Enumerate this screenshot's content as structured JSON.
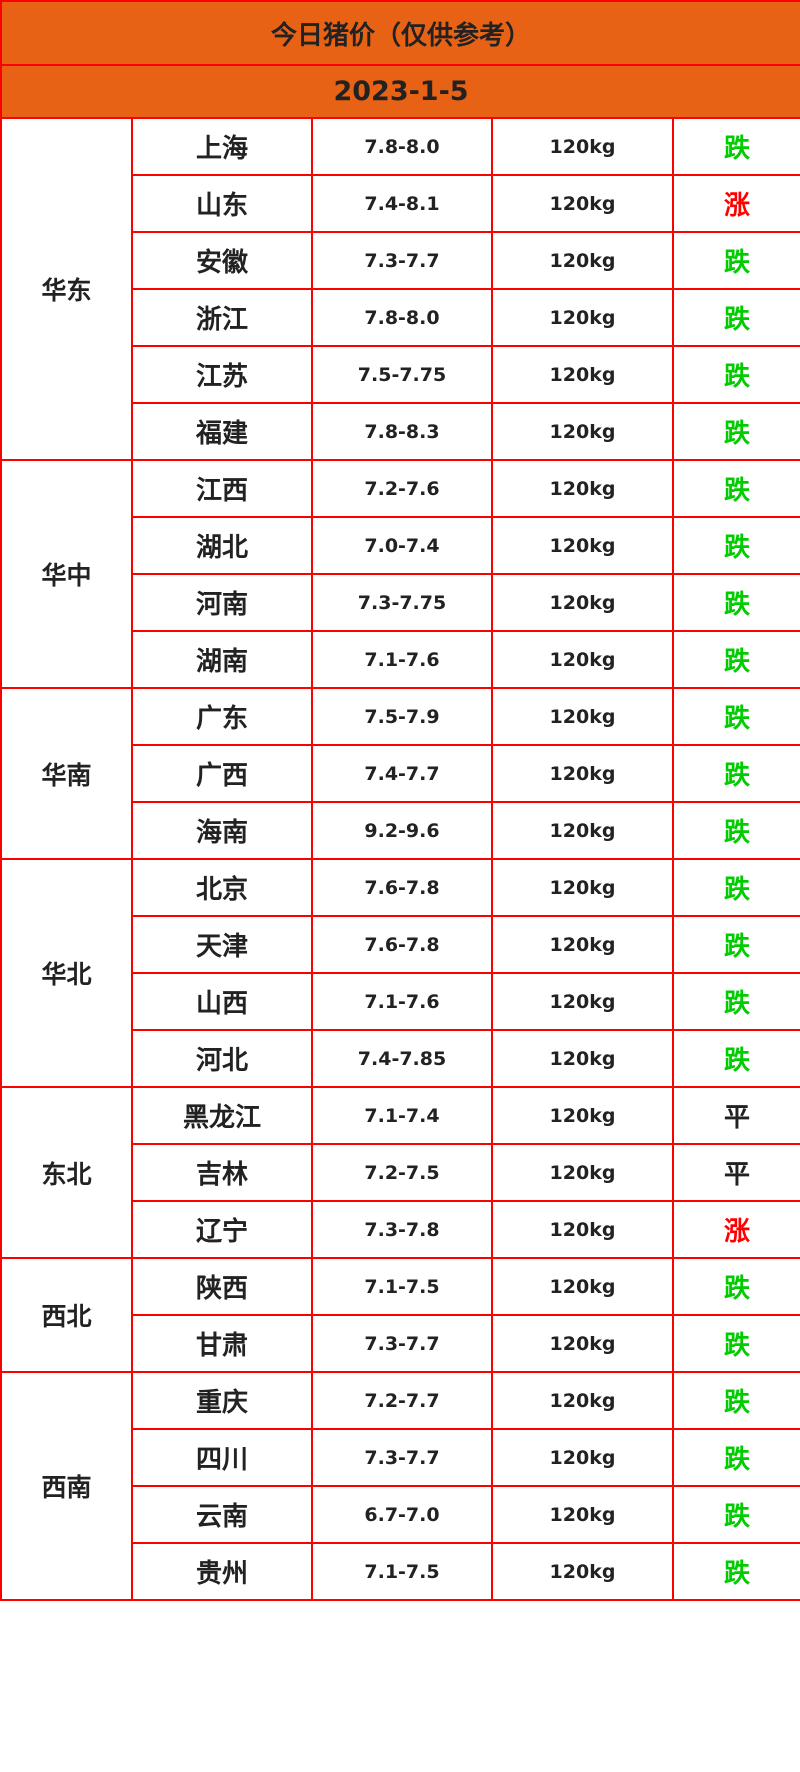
{
  "title": "今日猪价（仅供参考）",
  "date": "2023-1-5",
  "colors": {
    "header_bg": "#e86215",
    "border": "#ff0000",
    "down": "#00cc00",
    "up": "#ff0000",
    "flat": "#222222"
  },
  "regions": [
    {
      "name": "华东",
      "rows": [
        {
          "province": "上海",
          "price": "7.8-8.0",
          "weight": "120kg",
          "trend": "跌"
        },
        {
          "province": "山东",
          "price": "7.4-8.1",
          "weight": "120kg",
          "trend": "涨"
        },
        {
          "province": "安徽",
          "price": "7.3-7.7",
          "weight": "120kg",
          "trend": "跌"
        },
        {
          "province": "浙江",
          "price": "7.8-8.0",
          "weight": "120kg",
          "trend": "跌"
        },
        {
          "province": "江苏",
          "price": "7.5-7.75",
          "weight": "120kg",
          "trend": "跌"
        },
        {
          "province": "福建",
          "price": "7.8-8.3",
          "weight": "120kg",
          "trend": "跌"
        }
      ]
    },
    {
      "name": "华中",
      "rows": [
        {
          "province": "江西",
          "price": "7.2-7.6",
          "weight": "120kg",
          "trend": "跌"
        },
        {
          "province": "湖北",
          "price": "7.0-7.4",
          "weight": "120kg",
          "trend": "跌"
        },
        {
          "province": "河南",
          "price": "7.3-7.75",
          "weight": "120kg",
          "trend": "跌"
        },
        {
          "province": "湖南",
          "price": "7.1-7.6",
          "weight": "120kg",
          "trend": "跌"
        }
      ]
    },
    {
      "name": "华南",
      "rows": [
        {
          "province": "广东",
          "price": "7.5-7.9",
          "weight": "120kg",
          "trend": "跌"
        },
        {
          "province": "广西",
          "price": "7.4-7.7",
          "weight": "120kg",
          "trend": "跌"
        },
        {
          "province": "海南",
          "price": "9.2-9.6",
          "weight": "120kg",
          "trend": "跌"
        }
      ]
    },
    {
      "name": "华北",
      "rows": [
        {
          "province": "北京",
          "price": "7.6-7.8",
          "weight": "120kg",
          "trend": "跌"
        },
        {
          "province": "天津",
          "price": "7.6-7.8",
          "weight": "120kg",
          "trend": "跌"
        },
        {
          "province": "山西",
          "price": "7.1-7.6",
          "weight": "120kg",
          "trend": "跌"
        },
        {
          "province": "河北",
          "price": "7.4-7.85",
          "weight": "120kg",
          "trend": "跌"
        }
      ]
    },
    {
      "name": "东北",
      "rows": [
        {
          "province": "黑龙江",
          "price": "7.1-7.4",
          "weight": "120kg",
          "trend": "平"
        },
        {
          "province": "吉林",
          "price": "7.2-7.5",
          "weight": "120kg",
          "trend": "平"
        },
        {
          "province": "辽宁",
          "price": "7.3-7.8",
          "weight": "120kg",
          "trend": "涨"
        }
      ]
    },
    {
      "name": "西北",
      "rows": [
        {
          "province": "陕西",
          "price": "7.1-7.5",
          "weight": "120kg",
          "trend": "跌"
        },
        {
          "province": "甘肃",
          "price": "7.3-7.7",
          "weight": "120kg",
          "trend": "跌"
        }
      ]
    },
    {
      "name": "西南",
      "rows": [
        {
          "province": "重庆",
          "price": "7.2-7.7",
          "weight": "120kg",
          "trend": "跌"
        },
        {
          "province": "四川",
          "price": "7.3-7.7",
          "weight": "120kg",
          "trend": "跌"
        },
        {
          "province": "云南",
          "price": "6.7-7.0",
          "weight": "120kg",
          "trend": "跌"
        },
        {
          "province": "贵州",
          "price": "7.1-7.5",
          "weight": "120kg",
          "trend": "跌"
        }
      ]
    }
  ]
}
